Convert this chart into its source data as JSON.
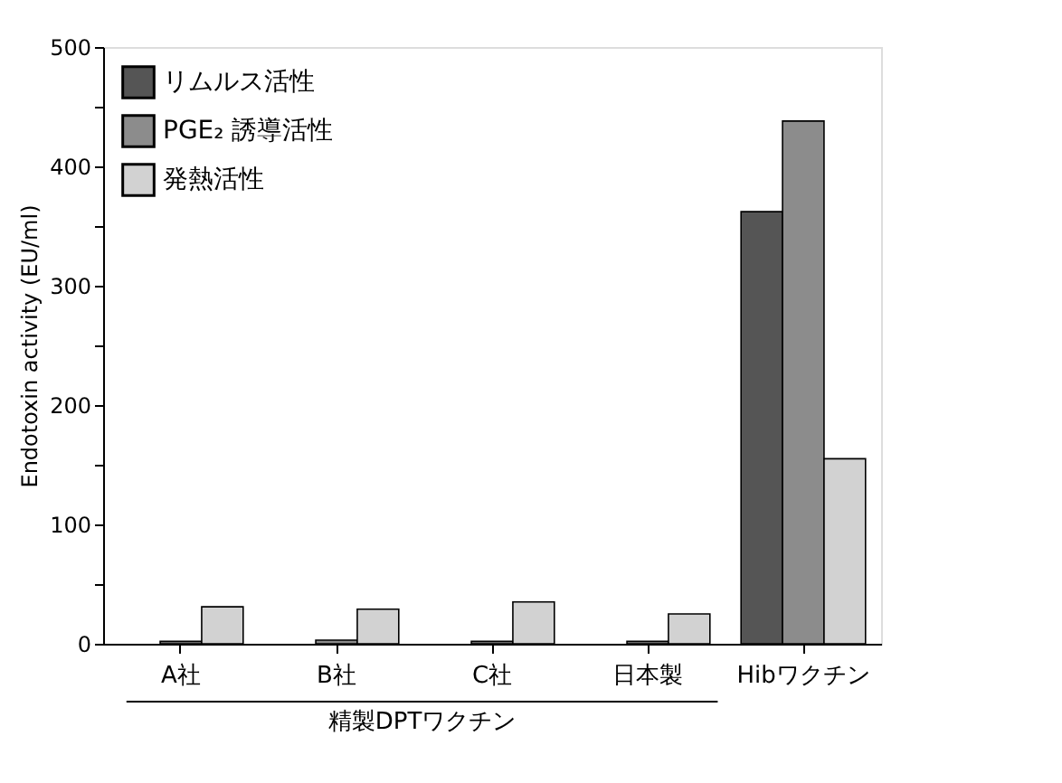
{
  "chart_data": {
    "type": "bar",
    "categories": [
      "A社",
      "B社",
      "C社",
      "日本製",
      "Hibワクチン"
    ],
    "series": [
      {
        "name": "リムルス活性",
        "color": "#555555",
        "values": [
          null,
          null,
          null,
          null,
          362
        ]
      },
      {
        "name": "PGE₂ 誘導活性",
        "color": "#8c8c8c",
        "values": [
          2,
          3,
          2,
          2,
          438
        ]
      },
      {
        "name": "発熱活性",
        "color": "#d2d2d2",
        "values": [
          31,
          29,
          35,
          25,
          155
        ]
      }
    ],
    "ylabel": "Endotoxin activity (EU/ml)",
    "annotations": [
      "精製DPTワクチン"
    ],
    "ylim": [
      0,
      500
    ],
    "yticks": [
      0,
      {
        "value": 50,
        "label": null
      },
      100,
      {
        "value": 150,
        "label": null
      },
      200,
      {
        "value": 250,
        "label": null
      },
      300,
      {
        "value": 350,
        "label": null
      },
      400,
      {
        "value": 450,
        "label": null
      },
      500
    ],
    "grid": false,
    "legend": "top left"
  }
}
